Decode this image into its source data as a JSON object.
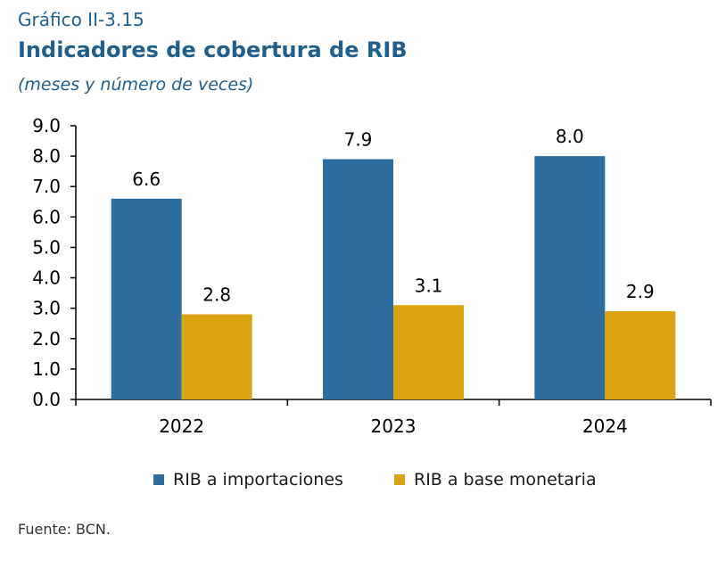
{
  "header": {
    "figure_number": "Gráfico II-3.15",
    "title": "Indicadores de cobertura de RIB",
    "subtitle": "(meses y número de veces)"
  },
  "chart_data": {
    "type": "bar",
    "categories": [
      "2022",
      "2023",
      "2024"
    ],
    "series": [
      {
        "name": "RIB a importaciones",
        "values": [
          6.6,
          7.9,
          8.0
        ],
        "color": "#2e6e9e"
      },
      {
        "name": "RIB a base monetaria",
        "values": [
          2.8,
          3.1,
          2.9
        ],
        "color": "#d9a40f"
      }
    ],
    "data_labels": [
      [
        "6.6",
        "7.9",
        "8.0"
      ],
      [
        "2.8",
        "3.1",
        "2.9"
      ]
    ],
    "y_ticks": [
      "0.0",
      "1.0",
      "2.0",
      "3.0",
      "4.0",
      "5.0",
      "6.0",
      "7.0",
      "8.0",
      "9.0"
    ],
    "ylim": [
      0,
      9
    ],
    "grid": false,
    "legend_position": "bottom"
  },
  "source": "Fuente: BCN."
}
